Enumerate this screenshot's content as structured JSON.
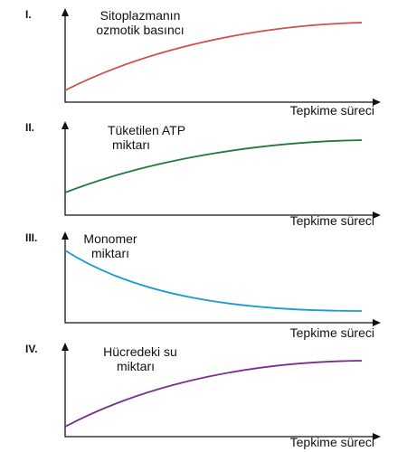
{
  "panels": [
    {
      "numeral": "I.",
      "y_label": [
        "Sitoplazmanın",
        "ozmotik basıncı"
      ],
      "x_label": "Tepkime süreci"
    },
    {
      "numeral": "II.",
      "y_label": [
        "Tüketilen ATP",
        "miktarı"
      ],
      "x_label": "Tepkime süreci"
    },
    {
      "numeral": "III.",
      "y_label": [
        "Monomer",
        "miktarı"
      ],
      "x_label": "Tepkime süreci"
    },
    {
      "numeral": "IV.",
      "y_label": [
        "Hücredeki su",
        "miktarı"
      ],
      "x_label": "Tepkime süreci"
    }
  ]
}
